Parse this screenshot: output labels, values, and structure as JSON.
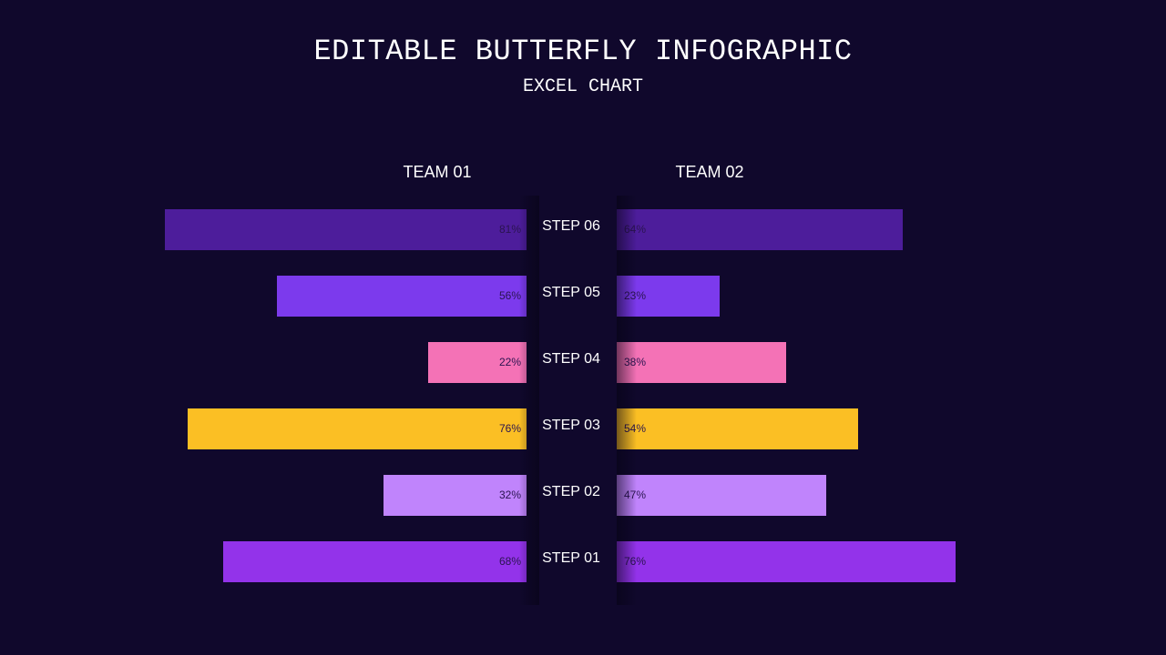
{
  "header": {
    "title": "EDITABLE BUTTERFLY INFOGRAPHIC",
    "subtitle": "EXCEL CHART"
  },
  "chart_data": {
    "type": "bar",
    "orientation": "horizontal-butterfly",
    "categories": [
      "STEP 06",
      "STEP 05",
      "STEP 04",
      "STEP 03",
      "STEP 02",
      "STEP 01"
    ],
    "series": [
      {
        "name": "TEAM 01",
        "values": [
          81,
          56,
          22,
          76,
          32,
          68
        ],
        "value_labels": [
          "81%",
          "56%",
          "22%",
          "76%",
          "32%",
          "68%"
        ]
      },
      {
        "name": "TEAM 02",
        "values": [
          64,
          23,
          38,
          54,
          47,
          76
        ],
        "value_labels": [
          "64%",
          "23%",
          "38%",
          "54%",
          "47%",
          "76%"
        ]
      }
    ],
    "colors": [
      "#4d1d9b",
      "#7c3aed",
      "#f472b6",
      "#fbbf24",
      "#c084fc",
      "#9333ea"
    ],
    "xlim": [
      0,
      100
    ],
    "value_unit": "%",
    "grid": false,
    "legend": "top"
  }
}
